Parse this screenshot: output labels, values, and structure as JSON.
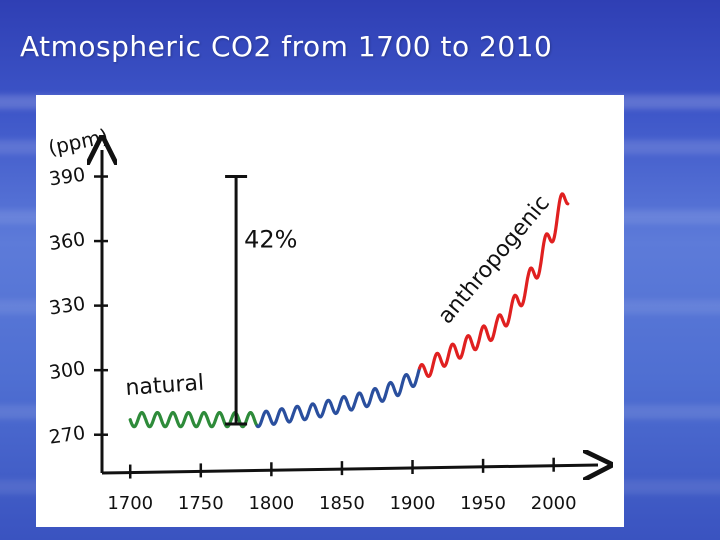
{
  "slide": {
    "title": "Atmospheric CO2 from 1700 to 2010",
    "background_color": "#4a64cc"
  },
  "chart_data": {
    "type": "line",
    "title": "",
    "ylabel": "(ppm)",
    "xlabel": "",
    "xlim": [
      1680,
      2030
    ],
    "ylim": [
      255,
      400
    ],
    "x_ticks": [
      1700,
      1750,
      1800,
      1850,
      1900,
      1950,
      2000
    ],
    "x_tick_labels": [
      "1700",
      "1750",
      "1800",
      "1850",
      "1900",
      "1950",
      "2000"
    ],
    "y_ticks": [
      270,
      300,
      330,
      360,
      390
    ],
    "y_tick_labels": [
      "270",
      "300",
      "330",
      "360",
      "390"
    ],
    "series": [
      {
        "name": "natural",
        "color": "#2e8b3a",
        "x": [
          1700,
          1790
        ],
        "y": [
          277,
          277
        ],
        "oscillating": true
      },
      {
        "name": "",
        "color": "#2a4f9e",
        "x": [
          1790,
          1810,
          1830,
          1850,
          1870,
          1890,
          1905
        ],
        "y": [
          277,
          279,
          281,
          284,
          287,
          292,
          298
        ],
        "oscillating": true
      },
      {
        "name": "anthropogenic",
        "color": "#e02020",
        "x": [
          1905,
          1920,
          1940,
          1960,
          1975,
          1990,
          2010
        ],
        "y": [
          298,
          305,
          312,
          320,
          332,
          350,
          383
        ],
        "oscillating": true
      }
    ],
    "annotations": {
      "natural_label": "natural",
      "anthropogenic_label": "anthropogenic",
      "increase_label": "42%",
      "increase_bar_x": 1775,
      "increase_bar_y": [
        275,
        390
      ]
    },
    "grid": false,
    "legend": "none"
  }
}
